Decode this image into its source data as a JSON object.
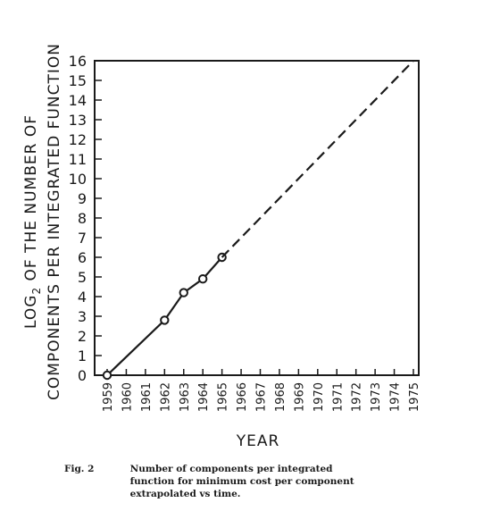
{
  "chart_data": {
    "type": "line",
    "xlabel": "YEAR",
    "ylabel_line1": "LOG",
    "ylabel_sub": "2",
    "ylabel_line1_rest": " OF THE NUMBER OF",
    "ylabel_line2": "COMPONENTS PER INTEGRATED FUNCTION",
    "x_tick_labels": [
      "1959",
      "1960",
      "1961",
      "1962",
      "1963",
      "1964",
      "1965",
      "1966",
      "1967",
      "1968",
      "1969",
      "1970",
      "1971",
      "1972",
      "1973",
      "1974",
      "1975"
    ],
    "y_tick_labels": [
      "0",
      "1",
      "2",
      "3",
      "4",
      "5",
      "6",
      "7",
      "8",
      "9",
      "10",
      "11",
      "12",
      "13",
      "14",
      "15",
      "16"
    ],
    "xlim": [
      1959,
      1975
    ],
    "ylim": [
      0,
      16
    ],
    "grid": false,
    "series": [
      {
        "style": "solid",
        "markers": "open-circle",
        "x": [
          1959,
          1962,
          1963,
          1964,
          1965
        ],
        "y": [
          0,
          2.8,
          4.2,
          4.9,
          6.0
        ]
      },
      {
        "style": "dashed",
        "markers": "none",
        "x": [
          1965,
          1975
        ],
        "y": [
          6.0,
          16
        ]
      }
    ]
  },
  "caption": {
    "label": "Fig. 2",
    "text": "Number of components per integrated\nfunction for minimum cost per component\nextrapolated vs time."
  },
  "colors": {
    "ink": "#1a1a1a",
    "background": "#ffffff"
  }
}
